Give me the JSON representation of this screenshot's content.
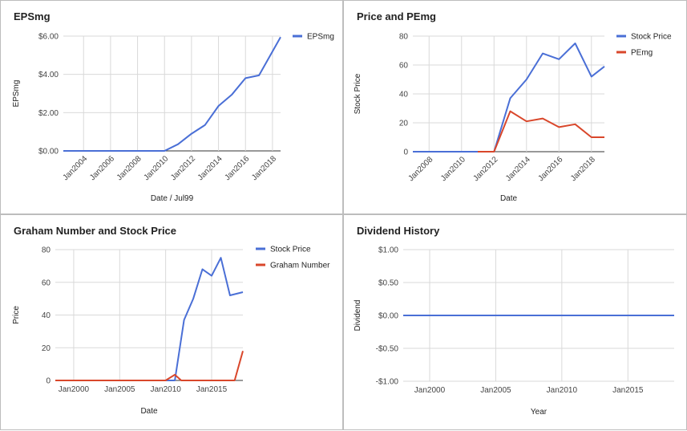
{
  "chart_data": [
    {
      "type": "line",
      "title": "EPSmg",
      "xlabel": "Date / Jul99",
      "ylabel": "EPSmg",
      "ylim": [
        0,
        6
      ],
      "yticks": [
        0,
        2,
        4,
        6
      ],
      "ytick_labels": [
        "$0.00",
        "$2.00",
        "$4.00",
        "$6.00"
      ],
      "xlim": [
        2002.5,
        2018.6
      ],
      "xticks": [
        2004,
        2006,
        2008,
        2010,
        2012,
        2014,
        2016,
        2018
      ],
      "xtick_labels": [
        "Jan2004",
        "Jan2006",
        "Jan2008",
        "Jan2010",
        "Jan2012",
        "Jan2014",
        "Jan2016",
        "Jan2018"
      ],
      "legend": "right",
      "series": [
        {
          "name": "EPSmg",
          "color": "#4a6fd6",
          "x": [
            2002.5,
            2010,
            2011,
            2012,
            2013,
            2014,
            2015,
            2016,
            2017,
            2018.6
          ],
          "y": [
            0,
            0,
            0.35,
            0.9,
            1.35,
            2.35,
            2.95,
            3.8,
            3.95,
            5.95
          ]
        }
      ]
    },
    {
      "type": "line",
      "title": "Price and PEmg",
      "xlabel": "Date",
      "ylabel": "Stock Price",
      "ylim": [
        0,
        80
      ],
      "yticks": [
        0,
        20,
        40,
        60,
        80
      ],
      "ytick_labels": [
        "0",
        "20",
        "40",
        "60",
        "80"
      ],
      "xlim": [
        2007,
        2018.8
      ],
      "xticks": [
        2008,
        2010,
        2012,
        2014,
        2016,
        2018
      ],
      "xtick_labels": [
        "Jan2008",
        "Jan2010",
        "Jan2012",
        "Jan2014",
        "Jan2016",
        "Jan2018"
      ],
      "legend": "right",
      "series": [
        {
          "name": "Stock Price",
          "color": "#4a6fd6",
          "x": [
            2007,
            2012,
            2013,
            2014,
            2015,
            2016,
            2017,
            2018,
            2018.8
          ],
          "y": [
            0,
            0,
            37,
            50,
            68,
            64,
            75,
            52,
            59
          ]
        },
        {
          "name": "PEmg",
          "color": "#d9472b",
          "x": [
            2011,
            2012,
            2013,
            2014,
            2015,
            2016,
            2017,
            2018,
            2018.8
          ],
          "y": [
            0,
            0,
            28,
            21,
            23,
            17,
            19,
            10,
            10
          ]
        }
      ]
    },
    {
      "type": "line",
      "title": "Graham Number and Stock Price",
      "xlabel": "Date",
      "ylabel": "Price",
      "ylim": [
        0,
        80
      ],
      "yticks": [
        0,
        20,
        40,
        60,
        80
      ],
      "ytick_labels": [
        "0",
        "20",
        "40",
        "60",
        "80"
      ],
      "xlim": [
        1998,
        2018.4
      ],
      "xticks": [
        2000,
        2005,
        2010,
        2015
      ],
      "xtick_labels": [
        "Jan2000",
        "Jan2005",
        "Jan2010",
        "Jan2015"
      ],
      "legend": "right",
      "series": [
        {
          "name": "Stock Price",
          "color": "#4a6fd6",
          "x": [
            1998,
            2011,
            2012,
            2013,
            2014,
            2015,
            2016,
            2017,
            2018.4
          ],
          "y": [
            0,
            0,
            37,
            50,
            68,
            64,
            75,
            52,
            54
          ]
        },
        {
          "name": "Graham Number",
          "color": "#d9472b",
          "x": [
            1998,
            2010,
            2011,
            2011.7,
            2012.5,
            2017.5,
            2018.4
          ],
          "y": [
            0,
            0,
            3.5,
            0,
            0,
            0,
            18
          ]
        }
      ]
    },
    {
      "type": "line",
      "title": "Dividend History",
      "xlabel": "Year",
      "ylabel": "Dividend",
      "ylim": [
        -1,
        1
      ],
      "yticks": [
        -1,
        -0.5,
        0,
        0.5,
        1
      ],
      "ytick_labels": [
        "-$1.00",
        "-$0.50",
        "$0.00",
        "$0.50",
        "$1.00"
      ],
      "xlim": [
        1998,
        2018.5
      ],
      "xticks": [
        2000,
        2005,
        2010,
        2015
      ],
      "xtick_labels": [
        "Jan2000",
        "Jan2005",
        "Jan2010",
        "Jan2015"
      ],
      "series": [
        {
          "color": "#4a6fd6",
          "x": [
            1998,
            2018.5
          ],
          "y": [
            0,
            0
          ]
        }
      ]
    }
  ]
}
